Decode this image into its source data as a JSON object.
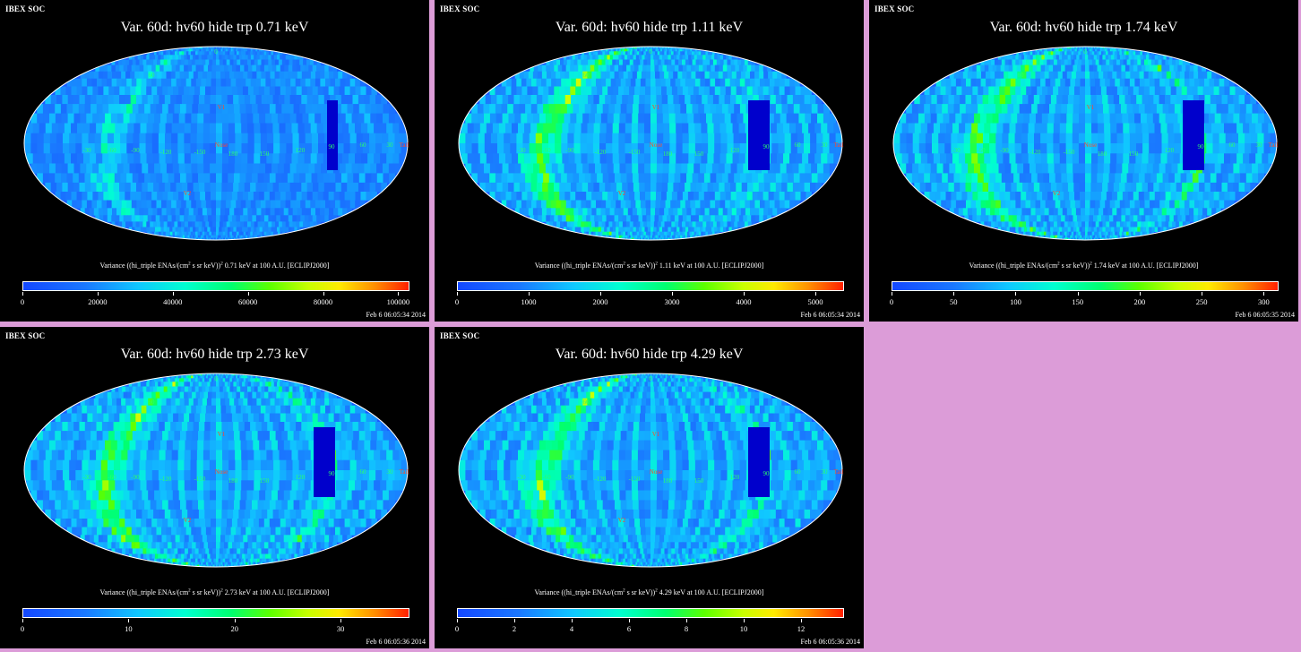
{
  "panels": [
    {
      "brand": "IBEX SOC",
      "title": "Var. 60d: hv60 hide trp 0.71 keV",
      "caption_pre": "Variance ((hi_triple ENAs/(cm",
      "caption_mid": " s sr keV))",
      "caption_post": " 0.71 keV at 100 A.U. [ECLIPJ2000]",
      "colorbar_ticks": [
        "0",
        "20000",
        "40000",
        "60000",
        "80000",
        "100000"
      ],
      "colorbar_max": 103000,
      "timestamp": "Feb  6 06:05:34 2014",
      "labels": [
        "60",
        "V1",
        "Nose",
        "V2",
        "Tail",
        "-30",
        "-60",
        "-90",
        "-120",
        "-150",
        "180",
        "150",
        "120",
        "90",
        "60",
        "30",
        "0"
      ]
    },
    {
      "brand": "IBEX SOC",
      "title": "Var. 60d: hv60 hide trp 1.11 keV",
      "caption_pre": "Variance ((hi_triple ENAs/(cm",
      "caption_mid": " s sr keV))",
      "caption_post": " 1.11 keV at 100 A.U. [ECLIPJ2000]",
      "colorbar_ticks": [
        "0",
        "1000",
        "2000",
        "3000",
        "4000",
        "5000"
      ],
      "colorbar_max": 5400,
      "timestamp": "Feb  6 06:05:34 2014",
      "labels": [
        "60",
        "V1",
        "Nose",
        "V2",
        "Tail",
        "-30",
        "-60",
        "-90",
        "-120",
        "-150",
        "180",
        "150",
        "120",
        "90",
        "60",
        "30",
        "0"
      ]
    },
    {
      "brand": "IBEX SOC",
      "title": "Var. 60d: hv60 hide trp 1.74 keV",
      "caption_pre": "Variance ((hi_triple ENAs/(cm",
      "caption_mid": " s sr keV))",
      "caption_post": " 1.74 keV at 100 A.U. [ECLIPJ2000]",
      "colorbar_ticks": [
        "0",
        "50",
        "100",
        "150",
        "200",
        "250",
        "300"
      ],
      "colorbar_max": 312,
      "timestamp": "Feb  6 06:05:35 2014",
      "labels": [
        "60",
        "V1",
        "Nose",
        "V2",
        "Tail",
        "-30",
        "-60",
        "-90",
        "-120",
        "-150",
        "180",
        "150",
        "120",
        "90",
        "60",
        "30",
        "0"
      ]
    },
    {
      "brand": "IBEX SOC",
      "title": "Var. 60d: hv60 hide trp 2.73 keV",
      "caption_pre": "Variance ((hi_triple ENAs/(cm",
      "caption_mid": " s sr keV))",
      "caption_post": " 2.73 keV at 100 A.U. [ECLIPJ2000]",
      "colorbar_ticks": [
        "0",
        "10",
        "20",
        "30"
      ],
      "colorbar_max": 36.5,
      "timestamp": "Feb  6 06:05:36 2014",
      "labels": [
        "60",
        "V1",
        "Nose",
        "V2",
        "Tail",
        "-30",
        "-60",
        "-90",
        "-120",
        "-150",
        "180",
        "150",
        "120",
        "90",
        "60",
        "30",
        "0"
      ]
    },
    {
      "brand": "IBEX SOC",
      "title": "Var. 60d: hv60 hide trp 4.29 keV",
      "caption_pre": "Variance ((hi_triple ENAs/(cm",
      "caption_mid": " s sr keV))",
      "caption_post": " 4.29 keV at 100 A.U. [ECLIPJ2000]",
      "colorbar_ticks": [
        "0",
        "2",
        "4",
        "6",
        "8",
        "10",
        "12"
      ],
      "colorbar_max": 13.5,
      "timestamp": "Feb  6 06:05:36 2014",
      "labels": [
        "60",
        "V1",
        "Nose",
        "V2",
        "Tail",
        "-30",
        "-60",
        "-90",
        "-120",
        "-150",
        "180",
        "150",
        "120",
        "90",
        "60",
        "30",
        "0"
      ]
    }
  ],
  "colors": {
    "background": "#dc9cd8",
    "panel": "#000000",
    "map_base": "#1a5cff",
    "label_marker": "#ff4a2a",
    "label_grid": "#2aff6a"
  }
}
